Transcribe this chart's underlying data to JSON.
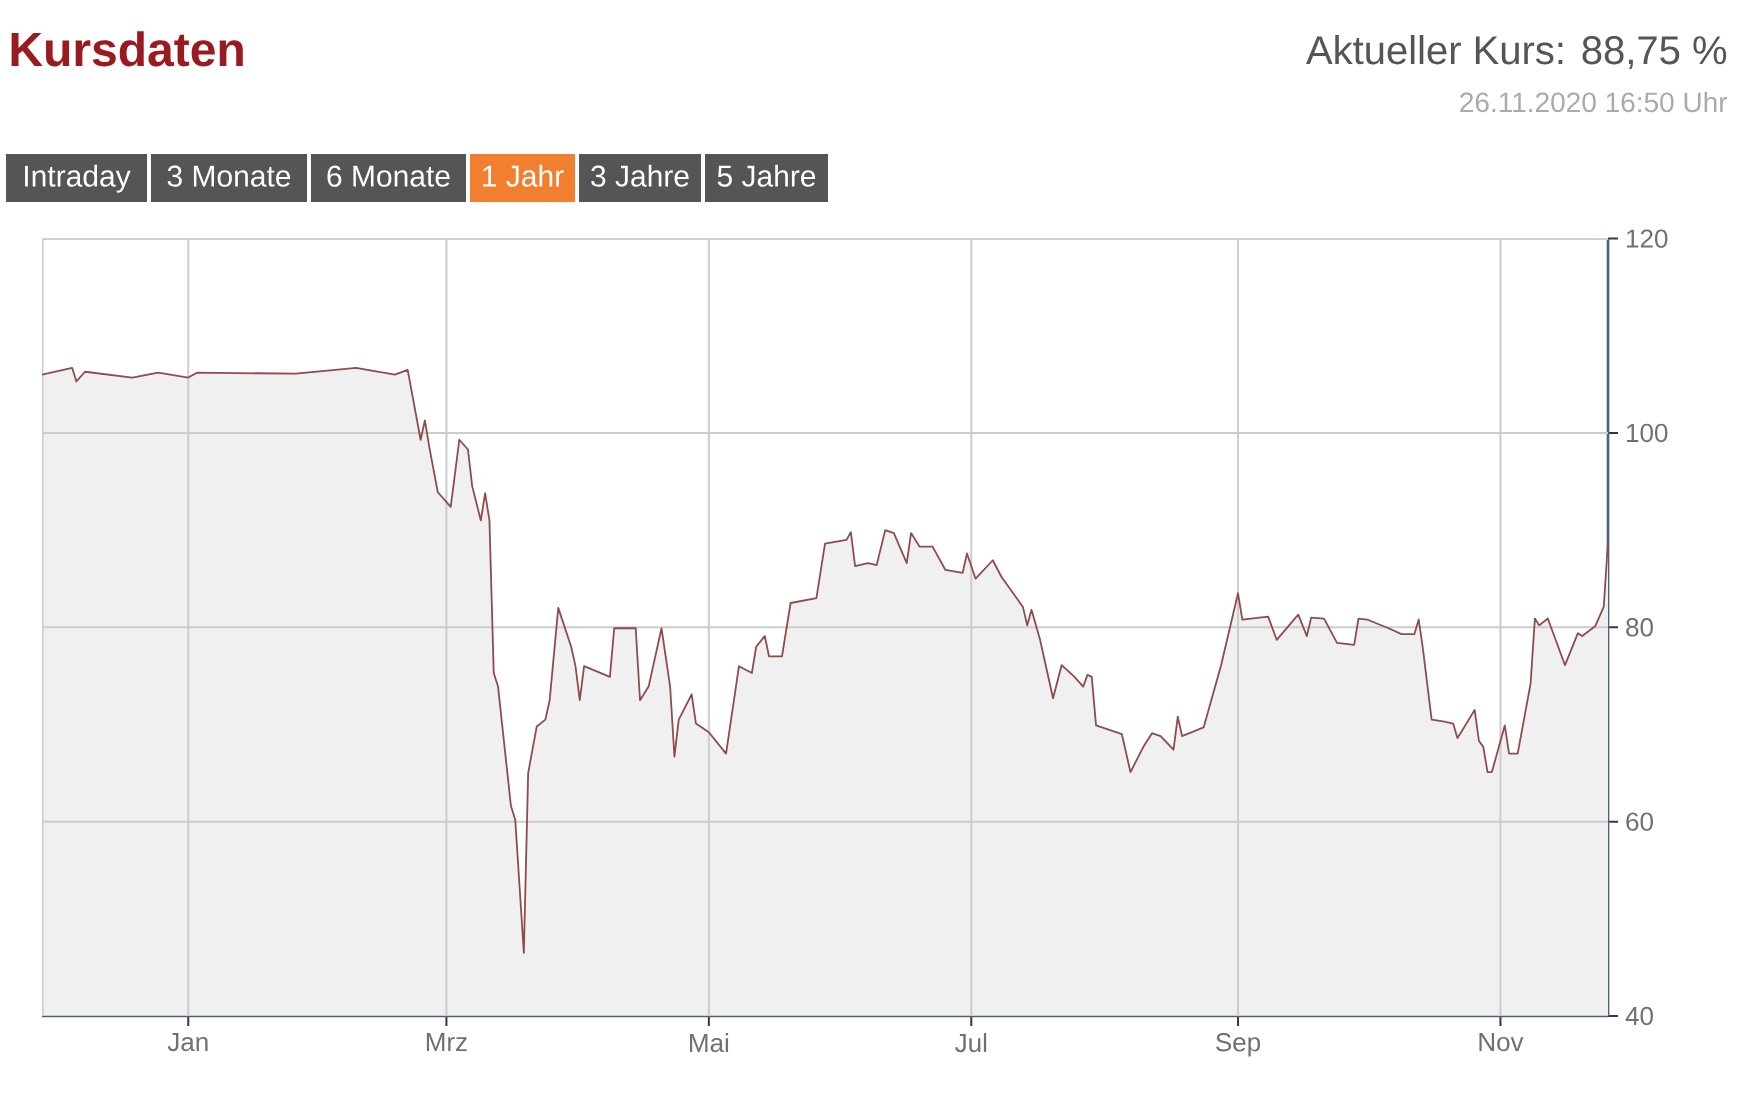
{
  "chart_data": {
    "type": "area",
    "title": "Kursdaten",
    "annotations": [
      "Aktueller Kurs: 88,75 %",
      "26.11.2020 16:50 Uhr",
      "Intraday",
      "3 Monate",
      "6 Monate",
      "1 Jahr",
      "3 Jahre",
      "5 Jahre"
    ],
    "x": [
      "2019-11-28",
      "2019-12-05",
      "2019-12-06",
      "2019-12-08",
      "2019-12-19",
      "2019-12-25",
      "2020-01-01",
      "2020-01-03",
      "2020-01-26",
      "2020-02-09",
      "2020-02-18",
      "2020-02-21",
      "2020-02-24",
      "2020-02-25",
      "2020-02-26",
      "2020-02-28",
      "2020-03-02",
      "2020-03-04",
      "2020-03-06",
      "2020-03-07",
      "2020-03-09",
      "2020-03-10",
      "2020-03-11",
      "2020-03-12",
      "2020-03-13",
      "2020-03-16",
      "2020-03-17",
      "2020-03-19",
      "2020-03-20",
      "2020-03-22",
      "2020-03-24",
      "2020-03-25",
      "2020-03-27",
      "2020-03-30",
      "2020-03-31",
      "2020-04-01",
      "2020-04-02",
      "2020-04-08",
      "2020-04-09",
      "2020-04-14",
      "2020-04-15",
      "2020-04-17",
      "2020-04-20",
      "2020-04-22",
      "2020-04-23",
      "2020-04-24",
      "2020-04-27",
      "2020-04-28",
      "2020-05-01",
      "2020-05-05",
      "2020-05-08",
      "2020-05-11",
      "2020-05-12",
      "2020-05-14",
      "2020-05-15",
      "2020-05-18",
      "2020-05-20",
      "2020-05-26",
      "2020-05-28",
      "2020-06-02",
      "2020-06-03",
      "2020-06-04",
      "2020-06-07",
      "2020-06-09",
      "2020-06-11",
      "2020-06-13",
      "2020-06-16",
      "2020-06-17",
      "2020-06-19",
      "2020-06-22",
      "2020-06-25",
      "2020-06-29",
      "2020-06-30",
      "2020-07-02",
      "2020-07-06",
      "2020-07-08",
      "2020-07-13",
      "2020-07-14",
      "2020-07-15",
      "2020-07-17",
      "2020-07-20",
      "2020-07-22",
      "2020-07-25",
      "2020-07-27",
      "2020-07-28",
      "2020-07-29",
      "2020-07-30",
      "2020-08-05",
      "2020-08-07",
      "2020-08-10",
      "2020-08-12",
      "2020-08-14",
      "2020-08-17",
      "2020-08-18",
      "2020-08-19",
      "2020-08-24",
      "2020-08-28",
      "2020-09-01",
      "2020-09-02",
      "2020-09-08",
      "2020-09-10",
      "2020-09-15",
      "2020-09-17",
      "2020-09-18",
      "2020-09-21",
      "2020-09-24",
      "2020-09-28",
      "2020-09-29",
      "2020-10-01",
      "2020-10-06",
      "2020-10-09",
      "2020-10-12",
      "2020-10-13",
      "2020-10-14",
      "2020-10-16",
      "2020-10-19",
      "2020-10-21",
      "2020-10-22",
      "2020-10-23",
      "2020-10-26",
      "2020-10-27",
      "2020-10-28",
      "2020-10-29",
      "2020-10-30",
      "2020-11-02",
      "2020-11-03",
      "2020-11-05",
      "2020-11-08",
      "2020-11-09",
      "2020-11-10",
      "2020-11-12",
      "2020-11-16",
      "2020-11-19",
      "2020-11-20",
      "2020-11-23",
      "2020-11-25",
      "2020-11-26"
    ],
    "series": [
      {
        "color": "#8e4c4c",
        "values": [
          106.0,
          106.7,
          105.3,
          106.3,
          105.7,
          106.2,
          105.7,
          106.2,
          106.1,
          106.7,
          106.0,
          106.5,
          99.3,
          101.3,
          98.6,
          93.9,
          92.4,
          99.3,
          98.3,
          94.5,
          91.0,
          93.8,
          91.0,
          75.3,
          73.9,
          61.6,
          60.2,
          46.5,
          65.0,
          69.8,
          70.5,
          72.5,
          82.0,
          78.0,
          76.0,
          72.5,
          76.0,
          74.9,
          79.9,
          79.9,
          72.5,
          73.9,
          79.9,
          73.9,
          66.7,
          70.5,
          73.1,
          70.1,
          69.2,
          67.0,
          76.0,
          75.3,
          78.0,
          79.1,
          77.0,
          77.0,
          82.5,
          83.0,
          88.6,
          89.0,
          89.8,
          86.3,
          86.6,
          86.4,
          90.0,
          89.7,
          86.6,
          89.7,
          88.3,
          88.3,
          85.9,
          85.6,
          87.6,
          85.0,
          86.9,
          85.2,
          82.1,
          80.2,
          81.8,
          78.7,
          72.7,
          76.1,
          74.9,
          73.9,
          75.1,
          74.9,
          69.9,
          69.0,
          65.1,
          67.7,
          69.1,
          68.8,
          67.4,
          70.8,
          68.8,
          69.7,
          76.0,
          83.5,
          80.8,
          81.1,
          78.7,
          81.3,
          79.1,
          81.0,
          80.9,
          78.4,
          78.2,
          80.9,
          80.8,
          79.9,
          79.3,
          79.3,
          80.8,
          77.7,
          70.5,
          70.3,
          70.1,
          68.6,
          69.3,
          71.5,
          68.3,
          67.7,
          65.1,
          65.1,
          69.9,
          67.0,
          67.0,
          74.2,
          80.9,
          80.2,
          80.9,
          76.1,
          79.4,
          79.1,
          80.1,
          82.1,
          88.8
        ]
      }
    ],
    "xlim": [
      "2019-11-28",
      "2020-11-26"
    ],
    "xticks": [
      {
        "value": "2020-01-01",
        "label": "Jan"
      },
      {
        "value": "2020-03-01",
        "label": "Mrz"
      },
      {
        "value": "2020-05-01",
        "label": "Mai"
      },
      {
        "value": "2020-07-01",
        "label": "Jul"
      },
      {
        "value": "2020-09-01",
        "label": "Sep"
      },
      {
        "value": "2020-11-01",
        "label": "Nov"
      }
    ],
    "ylim": [
      40,
      120
    ],
    "yticks": [
      40,
      60,
      80,
      100,
      120
    ],
    "grid": true,
    "marker": "none",
    "line_style": "solid"
  }
}
